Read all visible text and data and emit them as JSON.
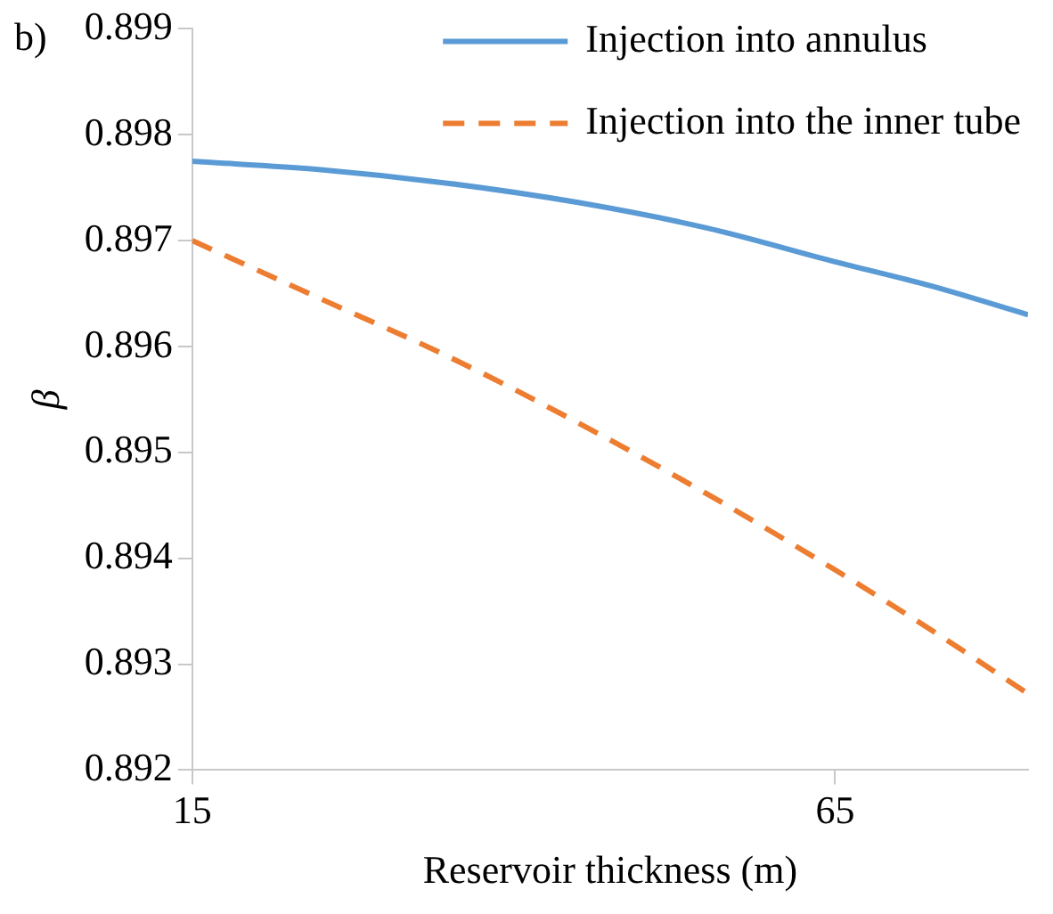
{
  "chart_data": {
    "type": "line",
    "xlabel": "Reservoir thickness (m)",
    "ylabel": "β",
    "annotations": [
      "b)"
    ],
    "xlim": [
      15,
      80
    ],
    "xticks": [
      15,
      65
    ],
    "ylim": [
      0.892,
      0.899
    ],
    "yticks": [
      0.892,
      0.893,
      0.894,
      0.895,
      0.896,
      0.897,
      0.898,
      0.899
    ],
    "grid": false,
    "legend": "top right",
    "marker": "none",
    "series": [
      {
        "name": "Injection into annulus",
        "color": "#5b9bd5",
        "line_style": "solid",
        "x": [
          15,
          25,
          35,
          45,
          55,
          65,
          72.5,
          80
        ],
        "values": [
          0.89775,
          0.89767,
          0.89754,
          0.89736,
          0.89712,
          0.8968,
          0.89657,
          0.8963
        ]
      },
      {
        "name": "Injection into the inner tube",
        "color": "#ed7d31",
        "line_style": "dashed",
        "x": [
          15,
          25,
          35,
          45,
          55,
          65,
          72.5,
          80
        ],
        "values": [
          0.897,
          0.89645,
          0.8959,
          0.89528,
          0.89461,
          0.89389,
          0.89332,
          0.89272
        ]
      }
    ]
  }
}
